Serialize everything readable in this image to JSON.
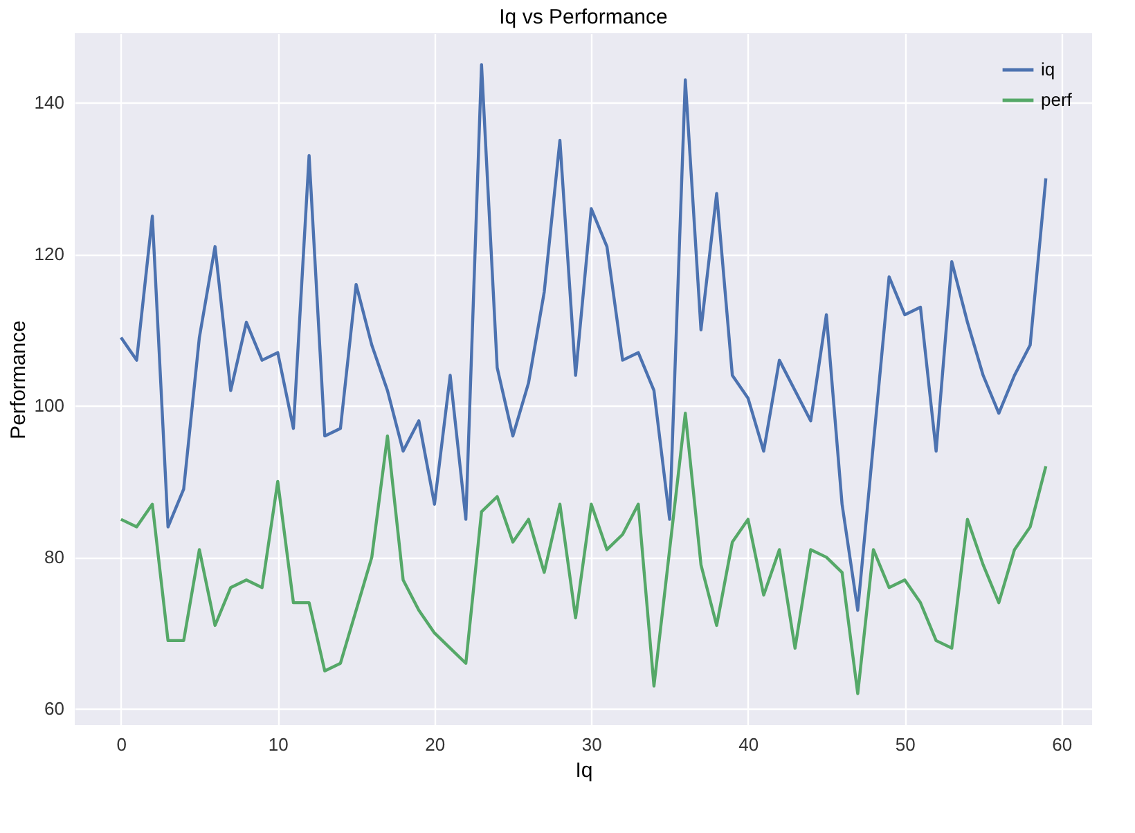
{
  "chart_data": {
    "type": "line",
    "title": "Iq vs Performance",
    "xlabel": "Iq",
    "ylabel": "Performance",
    "x": [
      0,
      1,
      2,
      3,
      4,
      5,
      6,
      7,
      8,
      9,
      10,
      11,
      12,
      13,
      14,
      15,
      16,
      17,
      18,
      19,
      20,
      21,
      22,
      23,
      24,
      25,
      26,
      27,
      28,
      29,
      30,
      31,
      32,
      33,
      34,
      35,
      36,
      37,
      38,
      39,
      40,
      41,
      42,
      43,
      44,
      45,
      46,
      47,
      48,
      49,
      50,
      51,
      52,
      53,
      54,
      55,
      56,
      57,
      58,
      59
    ],
    "series": [
      {
        "name": "iq",
        "color": "#4c72b0",
        "values": [
          109,
          106,
          125,
          84,
          89,
          109,
          121,
          102,
          111,
          106,
          107,
          97,
          133,
          96,
          97,
          116,
          108,
          102,
          94,
          98,
          87,
          104,
          85,
          145,
          105,
          96,
          103,
          115,
          135,
          104,
          126,
          121,
          106,
          107,
          102,
          85,
          143,
          110,
          128,
          104,
          101,
          94,
          106,
          102,
          98,
          112,
          87,
          73,
          95,
          117,
          112,
          113,
          94,
          119,
          111,
          104,
          99,
          104,
          108,
          130
        ]
      },
      {
        "name": "perf",
        "color": "#55a868",
        "values": [
          85,
          84,
          87,
          69,
          69,
          81,
          71,
          76,
          77,
          76,
          90,
          74,
          74,
          65,
          66,
          73,
          80,
          96,
          77,
          73,
          70,
          68,
          66,
          86,
          88,
          82,
          85,
          78,
          87,
          72,
          87,
          81,
          83,
          87,
          63,
          81,
          99,
          79,
          71,
          82,
          85,
          75,
          81,
          68,
          81,
          80,
          78,
          62,
          81,
          76,
          77,
          74,
          69,
          68,
          85,
          79,
          74,
          81,
          84,
          92
        ]
      }
    ],
    "xlim": [
      -2.95,
      61.95
    ],
    "ylim": [
      57.85,
      149.15
    ],
    "xticks": [
      0,
      10,
      20,
      30,
      40,
      50,
      60
    ],
    "yticks": [
      60,
      80,
      100,
      120,
      140
    ],
    "grid": true,
    "legend": "top right",
    "marker": "none",
    "line_style": "solid"
  }
}
